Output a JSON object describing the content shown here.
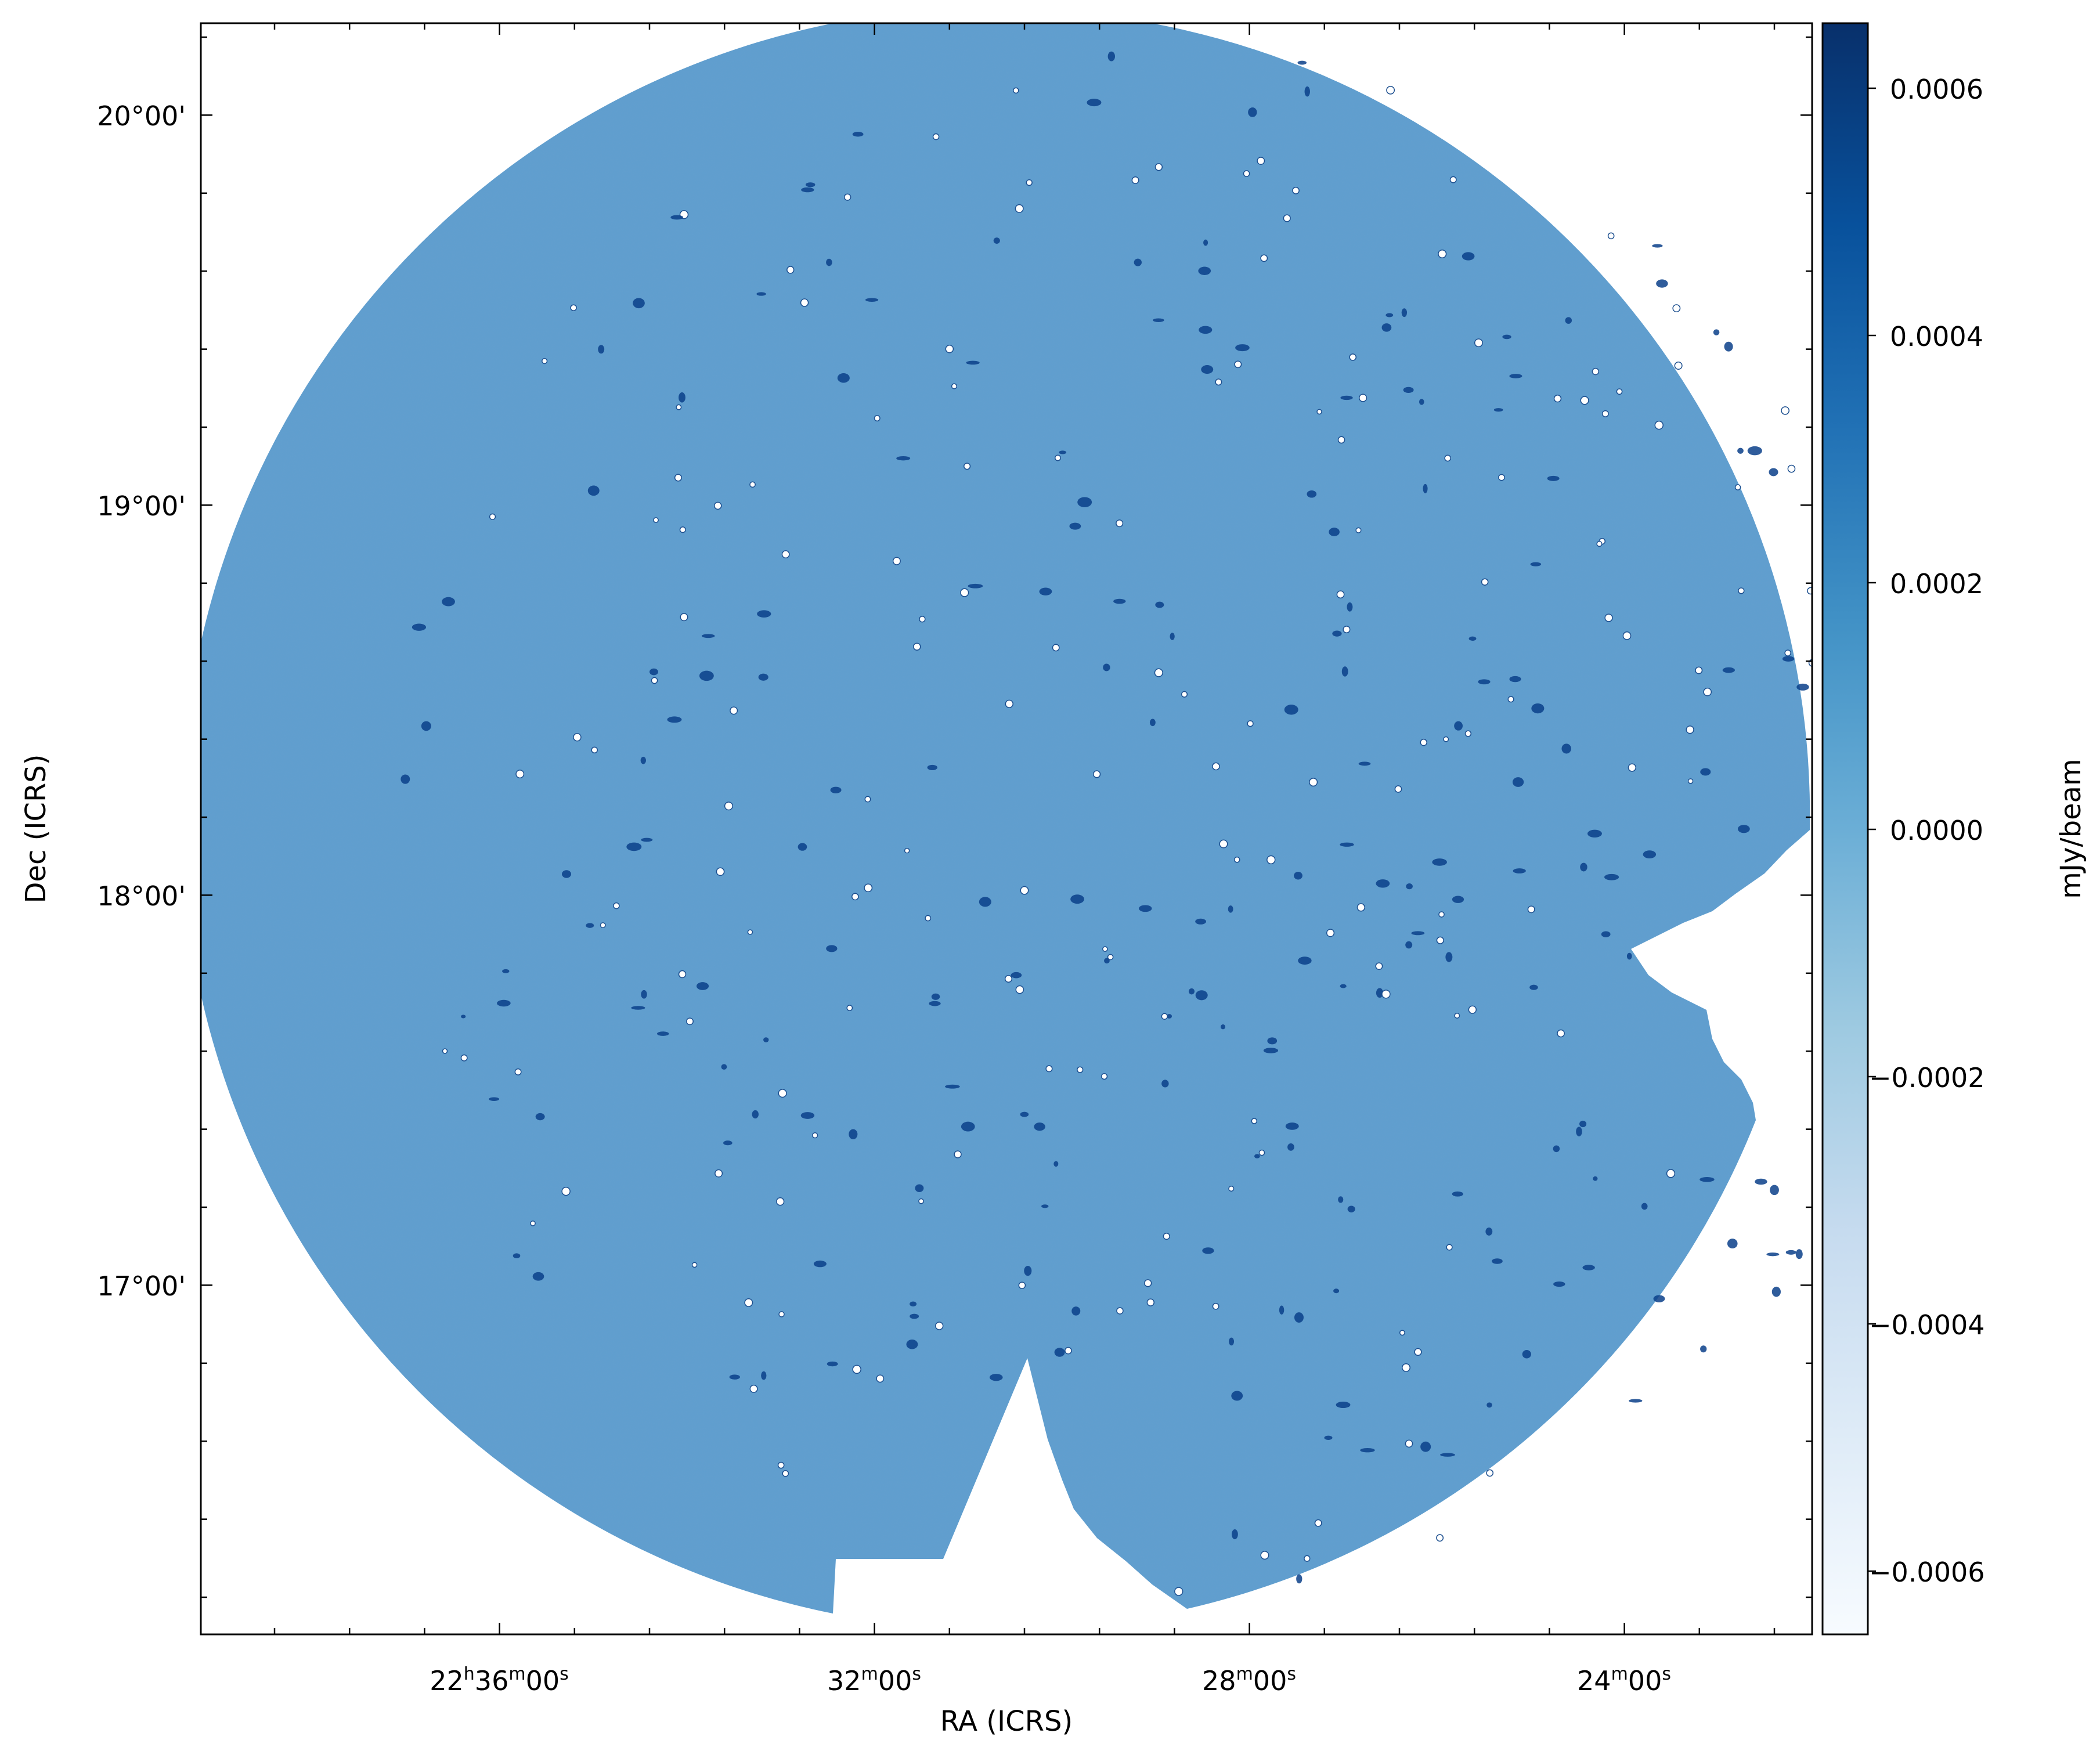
{
  "figure": {
    "xlabel": "RA (ICRS)",
    "ylabel": "Dec (ICRS)",
    "x_ticks": [
      {
        "h": "22",
        "m": "36",
        "s": "00",
        "show_h": true
      },
      {
        "h": "",
        "m": "32",
        "s": "00",
        "show_h": false
      },
      {
        "h": "",
        "m": "28",
        "s": "00",
        "show_h": false
      },
      {
        "h": "",
        "m": "24",
        "s": "00",
        "show_h": false
      }
    ],
    "y_ticks": [
      "20°00'",
      "19°00'",
      "18°00'",
      "17°00'"
    ],
    "colorbar": {
      "label": "mJy/beam",
      "ticks": [
        "0.0006",
        "0.0004",
        "0.0002",
        "0.0000",
        "−0.0002",
        "−0.0004",
        "−0.0006"
      ],
      "min": -0.00065,
      "max": 0.00065,
      "colors": [
        "#f7fbff",
        "#deebf7",
        "#c6dbef",
        "#9ecae1",
        "#6baed6",
        "#4292c6",
        "#2171b5",
        "#08519c",
        "#08306b"
      ]
    },
    "field_color": "#5e9ecf"
  }
}
